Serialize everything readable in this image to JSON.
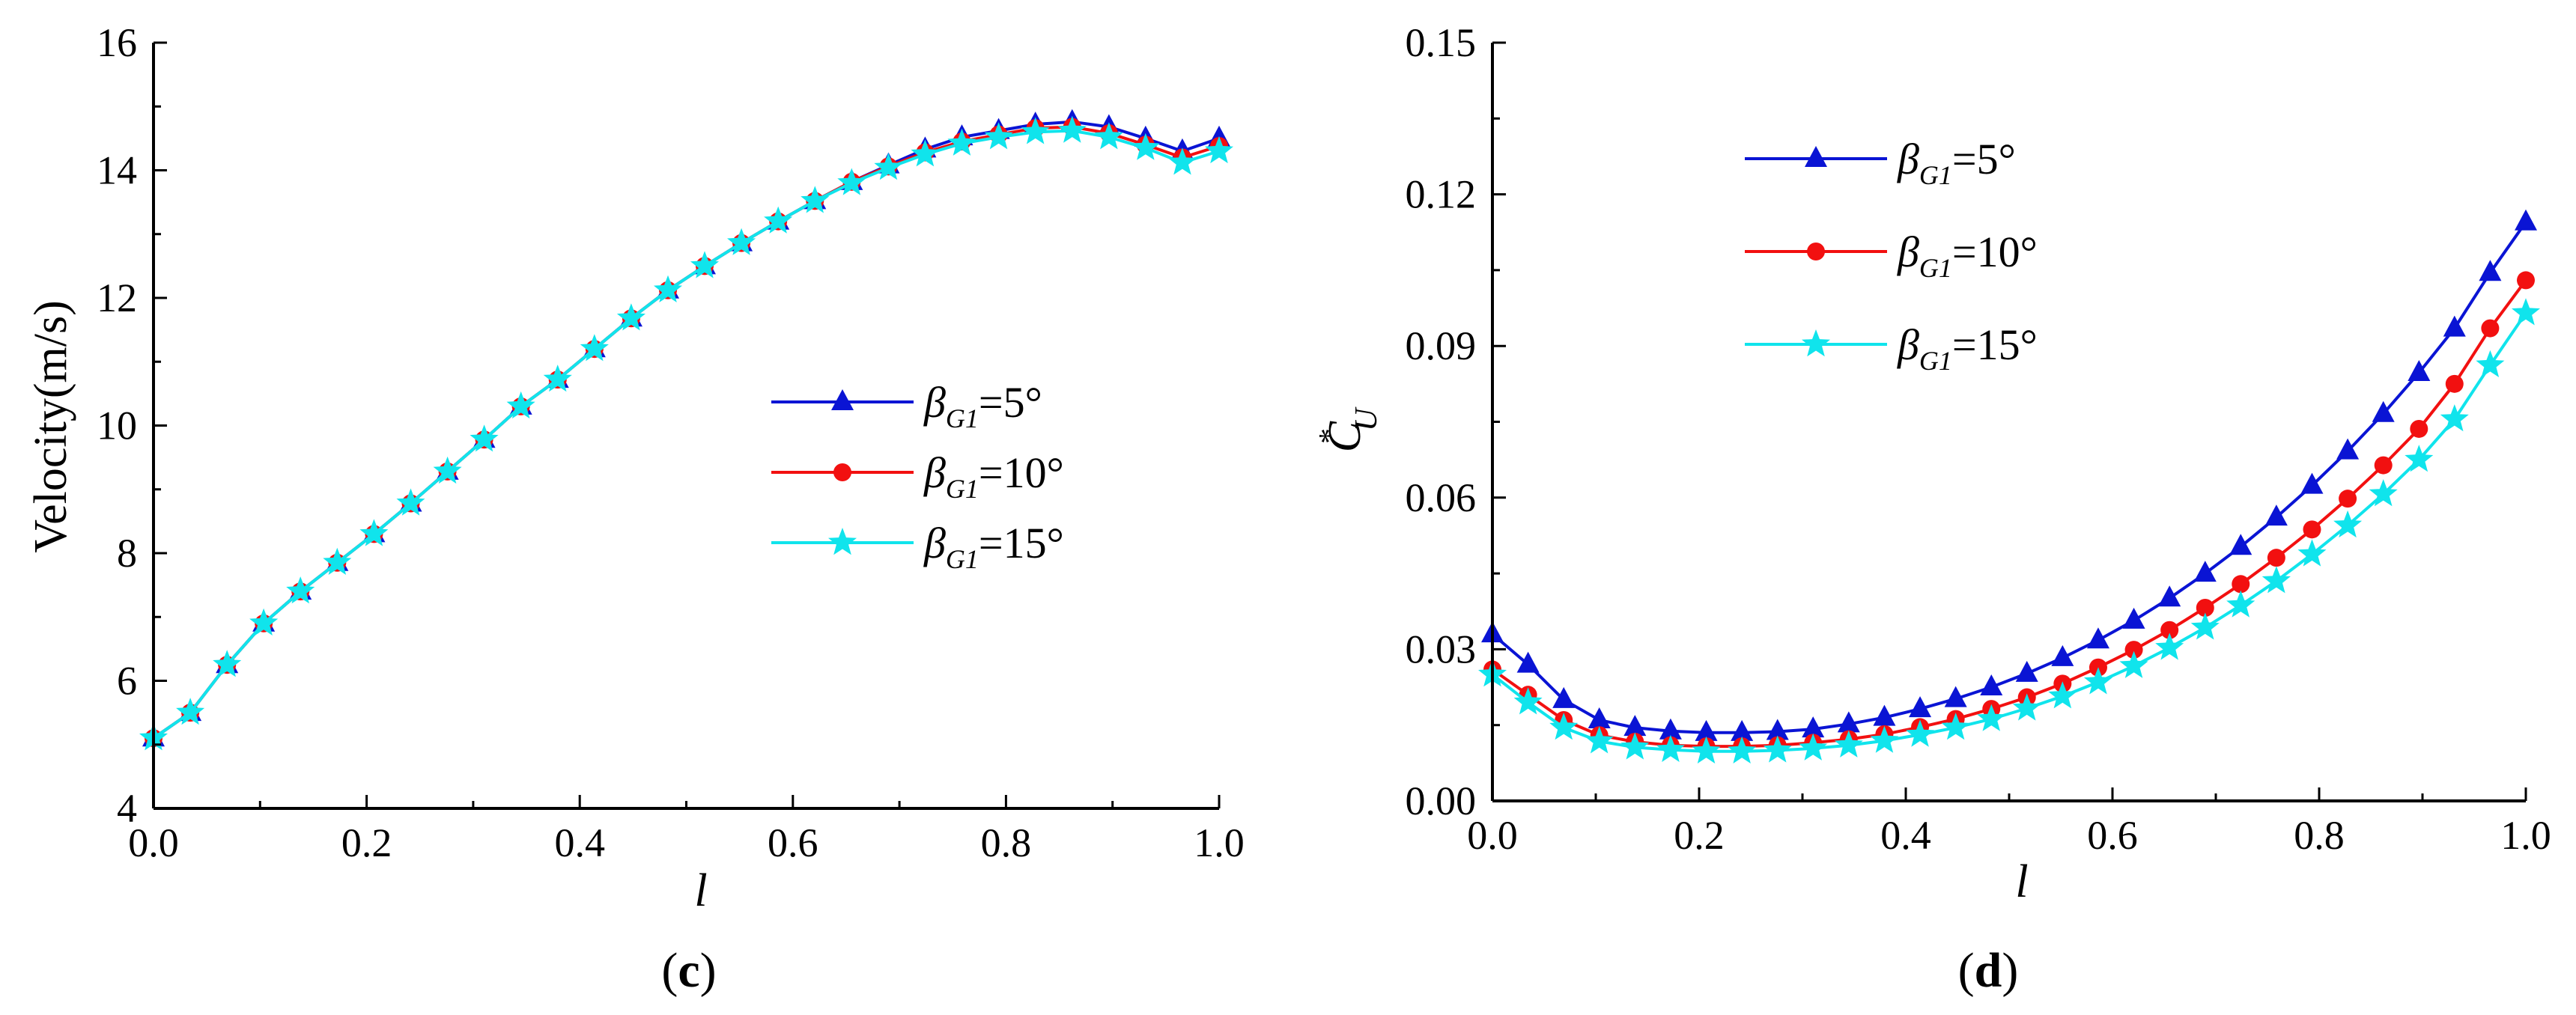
{
  "colors": {
    "blue": "#0a14d4",
    "red": "#f21010",
    "cyan": "#10e4ec"
  },
  "chart_data": [
    {
      "type": "line",
      "panel_label": [
        "(",
        "c",
        ")"
      ],
      "xlabel": "l",
      "ylabel": "Velocity(m/s)",
      "xlim": [
        0,
        1.0
      ],
      "ylim": [
        4,
        16
      ],
      "xticks": [
        "0.0",
        "0.2",
        "0.4",
        "0.6",
        "0.8",
        "1.0"
      ],
      "yticks": [
        "4",
        "6",
        "8",
        "10",
        "12",
        "14",
        "16"
      ],
      "legend_position": "center-right",
      "x": [
        0.0,
        0.0345,
        0.069,
        0.1034,
        0.1379,
        0.1724,
        0.2069,
        0.2414,
        0.2759,
        0.3103,
        0.3448,
        0.3793,
        0.4138,
        0.4483,
        0.4828,
        0.5172,
        0.5517,
        0.5862,
        0.6207,
        0.6552,
        0.6897,
        0.7241,
        0.7586,
        0.7931,
        0.8276,
        0.8621,
        0.8966,
        0.931,
        0.9655,
        1.0
      ],
      "series": [
        {
          "name": "=5°",
          "marker": "triangle",
          "color": "#0a14d4",
          "values": [
            5.1,
            5.5,
            6.25,
            6.9,
            7.4,
            7.85,
            8.3,
            8.78,
            9.28,
            9.78,
            10.3,
            10.72,
            11.2,
            11.68,
            12.12,
            12.5,
            12.86,
            13.2,
            13.52,
            13.82,
            14.08,
            14.33,
            14.52,
            14.62,
            14.72,
            14.76,
            14.68,
            14.5,
            14.3,
            14.5
          ]
        },
        {
          "name": "=10°",
          "marker": "circle",
          "color": "#f21010",
          "values": [
            5.1,
            5.5,
            6.25,
            6.9,
            7.4,
            7.85,
            8.3,
            8.78,
            9.28,
            9.78,
            10.3,
            10.72,
            11.2,
            11.68,
            12.12,
            12.5,
            12.86,
            13.2,
            13.52,
            13.82,
            14.06,
            14.28,
            14.45,
            14.56,
            14.66,
            14.68,
            14.58,
            14.4,
            14.2,
            14.38
          ]
        },
        {
          "name": "=15°",
          "marker": "star",
          "color": "#10e4ec",
          "values": [
            5.1,
            5.5,
            6.25,
            6.9,
            7.4,
            7.85,
            8.3,
            8.78,
            9.28,
            9.78,
            10.3,
            10.72,
            11.2,
            11.68,
            12.12,
            12.5,
            12.86,
            13.2,
            13.52,
            13.8,
            14.04,
            14.25,
            14.42,
            14.52,
            14.6,
            14.62,
            14.52,
            14.35,
            14.12,
            14.3
          ]
        }
      ]
    },
    {
      "type": "line",
      "panel_label": [
        "(",
        "d",
        ")"
      ],
      "xlabel": "l",
      "ylabel_main": "C",
      "ylabel_super": "*",
      "ylabel_sub": "U",
      "xlim": [
        0,
        1.0
      ],
      "ylim": [
        0,
        0.15
      ],
      "xticks": [
        "0.0",
        "0.2",
        "0.4",
        "0.6",
        "0.8",
        "1.0"
      ],
      "yticks": [
        "0.00",
        "0.03",
        "0.06",
        "0.09",
        "0.12",
        "0.15"
      ],
      "legend_position": "top-left",
      "x": [
        0.0,
        0.0345,
        0.069,
        0.1034,
        0.1379,
        0.1724,
        0.2069,
        0.2414,
        0.2759,
        0.3103,
        0.3448,
        0.3793,
        0.4138,
        0.4483,
        0.4828,
        0.5172,
        0.5517,
        0.5862,
        0.6207,
        0.6552,
        0.6897,
        0.7241,
        0.7586,
        0.7931,
        0.8276,
        0.8621,
        0.8966,
        0.931,
        0.9655,
        1.0
      ],
      "series": [
        {
          "name": "=5°",
          "marker": "triangle",
          "color": "#0a14d4",
          "values": [
            0.033,
            0.027,
            0.02,
            0.016,
            0.0145,
            0.0138,
            0.0135,
            0.0135,
            0.0137,
            0.0142,
            0.0152,
            0.0165,
            0.0182,
            0.0202,
            0.0225,
            0.0252,
            0.0283,
            0.0318,
            0.0357,
            0.0401,
            0.045,
            0.0503,
            0.0561,
            0.0624,
            0.0692,
            0.0766,
            0.0847,
            0.0935,
            0.1045,
            0.1145
          ]
        },
        {
          "name": "=10°",
          "marker": "circle",
          "color": "#f21010",
          "values": [
            0.026,
            0.021,
            0.016,
            0.013,
            0.0117,
            0.011,
            0.0108,
            0.0108,
            0.011,
            0.0115,
            0.0122,
            0.0132,
            0.0146,
            0.0162,
            0.0182,
            0.0205,
            0.0232,
            0.0264,
            0.0299,
            0.0338,
            0.0382,
            0.0429,
            0.0481,
            0.0537,
            0.0598,
            0.0664,
            0.0736,
            0.0825,
            0.0935,
            0.103
          ]
        },
        {
          "name": "=15°",
          "marker": "star",
          "color": "#10e4ec",
          "values": [
            0.025,
            0.0195,
            0.0145,
            0.0118,
            0.0106,
            0.0101,
            0.0098,
            0.0098,
            0.01,
            0.0104,
            0.011,
            0.0119,
            0.0131,
            0.0145,
            0.0162,
            0.0183,
            0.0207,
            0.0235,
            0.0267,
            0.0303,
            0.0343,
            0.0387,
            0.0435,
            0.0488,
            0.0545,
            0.0607,
            0.0675,
            0.0755,
            0.0862,
            0.0965
          ]
        }
      ]
    }
  ],
  "legend_symbol": {
    "beta": "β",
    "sub": "G1"
  }
}
